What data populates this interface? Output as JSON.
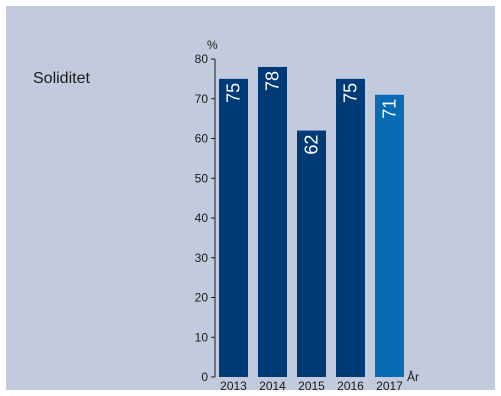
{
  "chart_data": {
    "type": "bar",
    "title": "Soliditet",
    "ylabel": "%",
    "xlabel": "År",
    "categories": [
      "2013",
      "2014",
      "2015",
      "2016",
      "2017"
    ],
    "values": [
      75,
      78,
      62,
      75,
      71
    ],
    "data_labels": [
      "75",
      "78",
      "62",
      "75",
      "71"
    ],
    "yticks": [
      0,
      10,
      20,
      30,
      40,
      50,
      60,
      70,
      80
    ],
    "ylim": [
      0,
      80
    ],
    "grid": false,
    "colors": {
      "bar": "#003b78",
      "bar_highlight": "#0a6bb5",
      "background": "#c2cbdd",
      "axis": "#1a1a1a",
      "label": "#ffffff"
    }
  }
}
